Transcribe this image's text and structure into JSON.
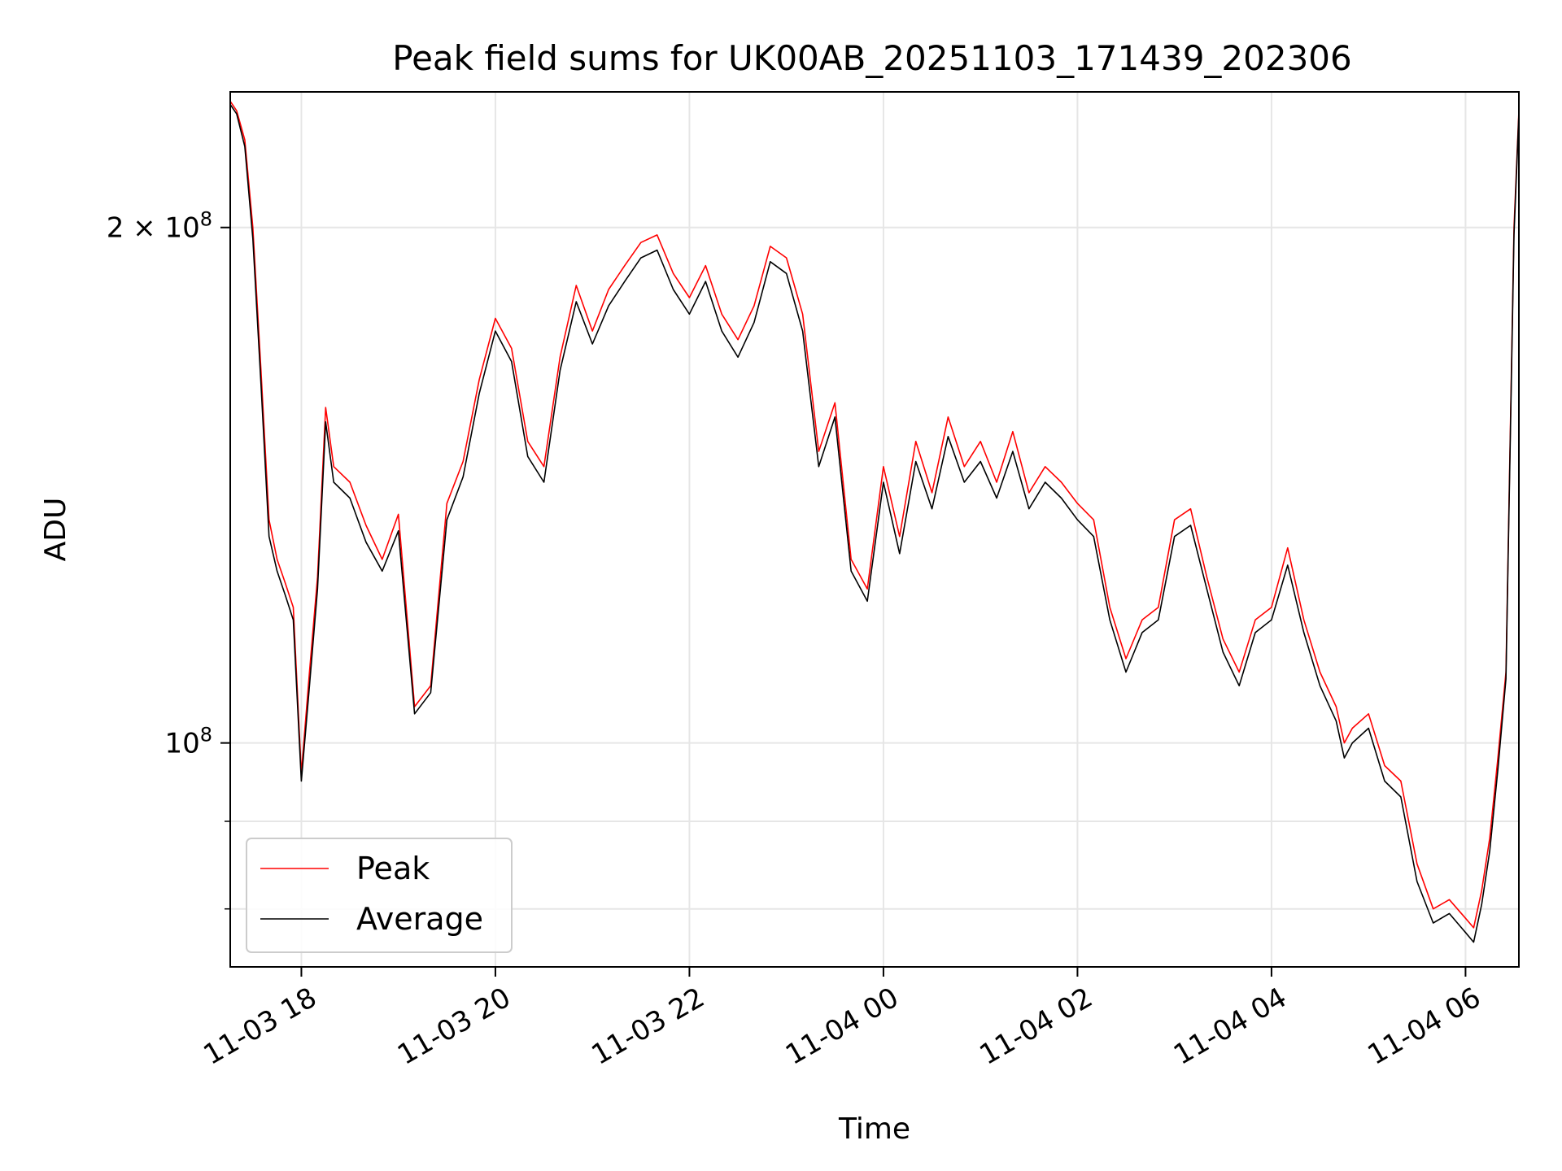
{
  "chart_data": {
    "type": "line",
    "title": "Peak field sums for UK00AB_20251103_171439_202306",
    "xlabel": "Time",
    "ylabel": "ADU",
    "yscale": "log",
    "ylim": [
      74000000,
      240000000
    ],
    "xlim": [
      "2025-11-03 17:16",
      "2025-11-04 06:33"
    ],
    "grid": true,
    "legend": "lower-left",
    "x_ticks": [
      {
        "value": "2025-11-03 18:00",
        "label": "11-03 18"
      },
      {
        "value": "2025-11-03 20:00",
        "label": "11-03 20"
      },
      {
        "value": "2025-11-03 22:00",
        "label": "11-03 22"
      },
      {
        "value": "2025-11-04 00:00",
        "label": "11-04 00"
      },
      {
        "value": "2025-11-04 02:00",
        "label": "11-04 02"
      },
      {
        "value": "2025-11-04 04:00",
        "label": "11-04 04"
      },
      {
        "value": "2025-11-04 06:00",
        "label": "11-04 06"
      }
    ],
    "y_ticks_major": [
      {
        "value": 100000000,
        "base": "10",
        "exp": "8",
        "mult": ""
      },
      {
        "value": 200000000,
        "base": "10",
        "exp": "8",
        "mult": "2 × "
      }
    ],
    "y_ticks_minor": [
      80000000,
      90000000
    ],
    "series": [
      {
        "name": "Peak",
        "color": "#ff0000",
        "x": [
          "2025-11-03 17:16",
          "2025-11-03 17:20",
          "2025-11-03 17:25",
          "2025-11-03 17:30",
          "2025-11-03 17:35",
          "2025-11-03 17:40",
          "2025-11-03 17:45",
          "2025-11-03 17:50",
          "2025-11-03 17:55",
          "2025-11-03 18:00",
          "2025-11-03 18:05",
          "2025-11-03 18:10",
          "2025-11-03 18:15",
          "2025-11-03 18:20",
          "2025-11-03 18:30",
          "2025-11-03 18:40",
          "2025-11-03 18:50",
          "2025-11-03 19:00",
          "2025-11-03 19:10",
          "2025-11-03 19:20",
          "2025-11-03 19:30",
          "2025-11-03 19:40",
          "2025-11-03 19:50",
          "2025-11-03 20:00",
          "2025-11-03 20:10",
          "2025-11-03 20:20",
          "2025-11-03 20:30",
          "2025-11-03 20:40",
          "2025-11-03 20:50",
          "2025-11-03 21:00",
          "2025-11-03 21:10",
          "2025-11-03 21:20",
          "2025-11-03 21:30",
          "2025-11-03 21:40",
          "2025-11-03 21:50",
          "2025-11-03 22:00",
          "2025-11-03 22:10",
          "2025-11-03 22:20",
          "2025-11-03 22:30",
          "2025-11-03 22:40",
          "2025-11-03 22:50",
          "2025-11-03 23:00",
          "2025-11-03 23:10",
          "2025-11-03 23:20",
          "2025-11-03 23:30",
          "2025-11-03 23:40",
          "2025-11-03 23:50",
          "2025-11-04 00:00",
          "2025-11-04 00:10",
          "2025-11-04 00:20",
          "2025-11-04 00:30",
          "2025-11-04 00:40",
          "2025-11-04 00:50",
          "2025-11-04 01:00",
          "2025-11-04 01:10",
          "2025-11-04 01:20",
          "2025-11-04 01:30",
          "2025-11-04 01:40",
          "2025-11-04 01:50",
          "2025-11-04 02:00",
          "2025-11-04 02:10",
          "2025-11-04 02:20",
          "2025-11-04 02:30",
          "2025-11-04 02:40",
          "2025-11-04 02:50",
          "2025-11-04 03:00",
          "2025-11-04 03:10",
          "2025-11-04 03:20",
          "2025-11-04 03:30",
          "2025-11-04 03:40",
          "2025-11-04 03:50",
          "2025-11-04 04:00",
          "2025-11-04 04:10",
          "2025-11-04 04:20",
          "2025-11-04 04:30",
          "2025-11-04 04:40",
          "2025-11-04 04:45",
          "2025-11-04 04:50",
          "2025-11-04 05:00",
          "2025-11-04 05:10",
          "2025-11-04 05:20",
          "2025-11-04 05:30",
          "2025-11-04 05:40",
          "2025-11-04 05:50",
          "2025-11-04 06:00",
          "2025-11-04 06:05",
          "2025-11-04 06:10",
          "2025-11-04 06:15",
          "2025-11-04 06:20",
          "2025-11-04 06:25",
          "2025-11-04 06:30",
          "2025-11-04 06:33"
        ],
        "values": [
          237000000,
          234000000,
          225000000,
          200000000,
          165000000,
          135000000,
          128000000,
          124000000,
          120000000,
          96000000,
          110000000,
          125000000,
          157000000,
          145000000,
          142000000,
          134000000,
          128000000,
          136000000,
          105000000,
          108000000,
          138000000,
          146000000,
          163000000,
          177000000,
          170000000,
          150000000,
          145000000,
          168000000,
          185000000,
          174000000,
          184000000,
          190000000,
          196000000,
          198000000,
          188000000,
          182000000,
          190000000,
          178000000,
          172000000,
          180000000,
          195000000,
          192000000,
          178000000,
          148000000,
          158000000,
          128000000,
          123000000,
          145000000,
          132000000,
          150000000,
          140000000,
          155000000,
          145000000,
          150000000,
          142000000,
          152000000,
          140000000,
          145000000,
          142000000,
          138000000,
          135000000,
          120000000,
          112000000,
          118000000,
          120000000,
          135000000,
          137000000,
          125000000,
          115000000,
          110000000,
          118000000,
          120000000,
          130000000,
          118000000,
          110000000,
          105000000,
          100000000,
          102000000,
          104000000,
          97000000,
          95000000,
          85000000,
          80000000,
          81000000,
          79000000,
          78000000,
          82000000,
          88000000,
          98000000,
          110000000,
          200000000,
          234000000
        ]
      },
      {
        "name": "Average",
        "color": "#000000",
        "x": [
          "2025-11-03 17:16",
          "2025-11-03 17:20",
          "2025-11-03 17:25",
          "2025-11-03 17:30",
          "2025-11-03 17:35",
          "2025-11-03 17:40",
          "2025-11-03 17:45",
          "2025-11-03 17:50",
          "2025-11-03 17:55",
          "2025-11-03 18:00",
          "2025-11-03 18:05",
          "2025-11-03 18:10",
          "2025-11-03 18:15",
          "2025-11-03 18:20",
          "2025-11-03 18:30",
          "2025-11-03 18:40",
          "2025-11-03 18:50",
          "2025-11-03 19:00",
          "2025-11-03 19:10",
          "2025-11-03 19:20",
          "2025-11-03 19:30",
          "2025-11-03 19:40",
          "2025-11-03 19:50",
          "2025-11-03 20:00",
          "2025-11-03 20:10",
          "2025-11-03 20:20",
          "2025-11-03 20:30",
          "2025-11-03 20:40",
          "2025-11-03 20:50",
          "2025-11-03 21:00",
          "2025-11-03 21:10",
          "2025-11-03 21:20",
          "2025-11-03 21:30",
          "2025-11-03 21:40",
          "2025-11-03 21:50",
          "2025-11-03 22:00",
          "2025-11-03 22:10",
          "2025-11-03 22:20",
          "2025-11-03 22:30",
          "2025-11-03 22:40",
          "2025-11-03 22:50",
          "2025-11-03 23:00",
          "2025-11-03 23:10",
          "2025-11-03 23:20",
          "2025-11-03 23:30",
          "2025-11-03 23:40",
          "2025-11-03 23:50",
          "2025-11-04 00:00",
          "2025-11-04 00:10",
          "2025-11-04 00:20",
          "2025-11-04 00:30",
          "2025-11-04 00:40",
          "2025-11-04 00:50",
          "2025-11-04 01:00",
          "2025-11-04 01:10",
          "2025-11-04 01:20",
          "2025-11-04 01:30",
          "2025-11-04 01:40",
          "2025-11-04 01:50",
          "2025-11-04 02:00",
          "2025-11-04 02:10",
          "2025-11-04 02:20",
          "2025-11-04 02:30",
          "2025-11-04 02:40",
          "2025-11-04 02:50",
          "2025-11-04 03:00",
          "2025-11-04 03:10",
          "2025-11-04 03:20",
          "2025-11-04 03:30",
          "2025-11-04 03:40",
          "2025-11-04 03:50",
          "2025-11-04 04:00",
          "2025-11-04 04:10",
          "2025-11-04 04:20",
          "2025-11-04 04:30",
          "2025-11-04 04:40",
          "2025-11-04 04:45",
          "2025-11-04 04:50",
          "2025-11-04 05:00",
          "2025-11-04 05:10",
          "2025-11-04 05:20",
          "2025-11-04 05:30",
          "2025-11-04 05:40",
          "2025-11-04 05:50",
          "2025-11-04 06:00",
          "2025-11-04 06:05",
          "2025-11-04 06:10",
          "2025-11-04 06:15",
          "2025-11-04 06:20",
          "2025-11-04 06:25",
          "2025-11-04 06:30",
          "2025-11-04 06:33"
        ],
        "values": [
          236000000,
          233000000,
          223000000,
          197000000,
          162000000,
          132000000,
          126000000,
          122000000,
          118000000,
          95000000,
          108000000,
          123000000,
          154000000,
          142000000,
          139000000,
          131000000,
          126000000,
          133000000,
          104000000,
          107000000,
          135000000,
          143000000,
          160000000,
          174000000,
          167000000,
          147000000,
          142000000,
          165000000,
          181000000,
          171000000,
          180000000,
          186000000,
          192000000,
          194000000,
          184000000,
          178000000,
          186000000,
          174000000,
          168000000,
          176000000,
          191000000,
          188000000,
          174000000,
          145000000,
          155000000,
          126000000,
          121000000,
          142000000,
          129000000,
          146000000,
          137000000,
          151000000,
          142000000,
          146000000,
          139000000,
          148000000,
          137000000,
          142000000,
          139000000,
          135000000,
          132000000,
          118000000,
          110000000,
          116000000,
          118000000,
          132000000,
          134000000,
          123000000,
          113000000,
          108000000,
          116000000,
          118000000,
          127000000,
          116000000,
          108000000,
          103000000,
          98000000,
          100000000,
          102000000,
          95000000,
          93000000,
          83000000,
          78500000,
          79500000,
          77500000,
          76500000,
          80500000,
          86500000,
          96500000,
          109000000,
          198000000,
          233000000
        ]
      }
    ]
  }
}
